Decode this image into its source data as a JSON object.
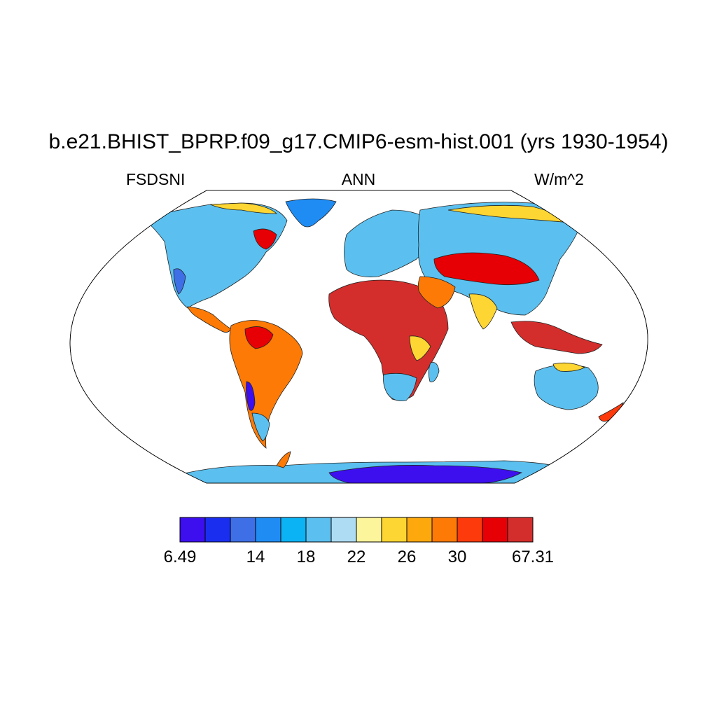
{
  "title": "b.e21.BHIST_BPRP.f09_g17.CMIP6-esm-hist.001 (yrs 1930-1954)",
  "variable": "FSDSNI",
  "season": "ANN",
  "units": "W/m^2",
  "colorbar": {
    "colors": [
      "#3d0fef",
      "#1a2ef0",
      "#3e6fe6",
      "#1f8cf4",
      "#0bb3f5",
      "#5bc0ef",
      "#aedcf3",
      "#fdf59b",
      "#fdd633",
      "#fda90e",
      "#fd7a06",
      "#fd3a0b",
      "#e60005",
      "#d32e2c"
    ],
    "tick_labels": [
      {
        "boundary": 0,
        "label": "6.49"
      },
      {
        "boundary": 3,
        "label": "14"
      },
      {
        "boundary": 5,
        "label": "18"
      },
      {
        "boundary": 7,
        "label": "22"
      },
      {
        "boundary": 9,
        "label": "26"
      },
      {
        "boundary": 11,
        "label": "30"
      },
      {
        "boundary": 14,
        "label": "67.31"
      }
    ]
  }
}
